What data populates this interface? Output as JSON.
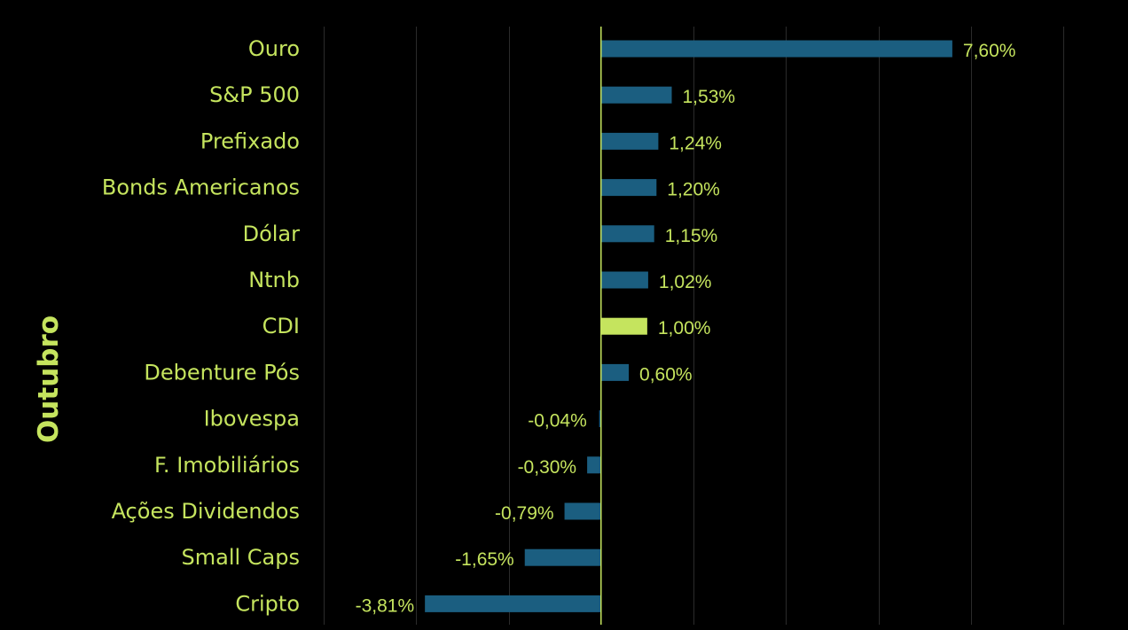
{
  "chart_data": {
    "type": "bar",
    "orientation": "horizontal",
    "ylabel": "Outubro",
    "categories": [
      "Ouro",
      "S&P 500",
      "Prefixado",
      "Bonds Americanos",
      "Dólar",
      "Ntnb",
      "CDI",
      "Debenture Pós",
      "Ibovespa",
      "F. Imobiliários",
      "Ações Dividendos",
      "Small Caps",
      "Cripto"
    ],
    "values": [
      7.6,
      1.53,
      1.24,
      1.2,
      1.15,
      1.02,
      1.0,
      0.6,
      -0.04,
      -0.3,
      -0.79,
      -1.65,
      -3.81
    ],
    "value_labels": [
      "7,60%",
      "1,53%",
      "1,24%",
      "1,20%",
      "1,15%",
      "1,02%",
      "1,00%",
      "0,60%",
      "-0,04%",
      "-0,30%",
      "-0,79%",
      "-1,65%",
      "-3,81%"
    ],
    "highlight_category": "CDI",
    "xlim": [
      -6,
      10
    ],
    "gridlines": "vertical",
    "grid_step": 2,
    "colors": {
      "background": "#000000",
      "bar": "#1b5e80",
      "highlight_bar": "#c5e45e",
      "text": "#c5e45e",
      "gridline": "#2b2b2b",
      "zero_line": "#c5e45e"
    }
  }
}
